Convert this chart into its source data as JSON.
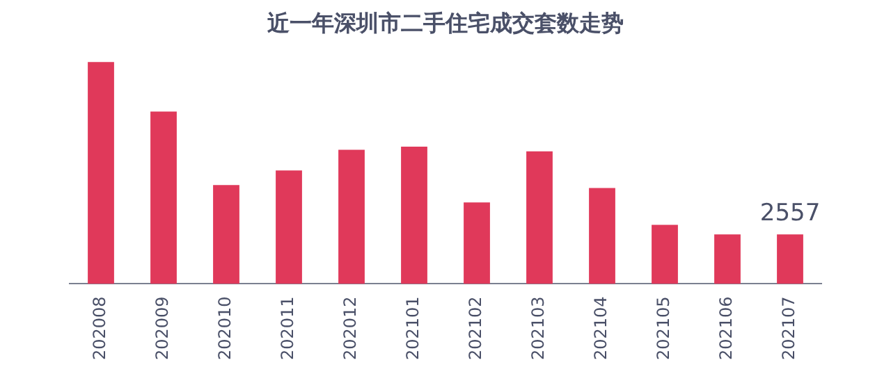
{
  "chart_data": {
    "type": "bar",
    "title": "近一年深圳市二手住宅成交套数走势",
    "tick_labels": "x",
    "categories": [
      "202008",
      "202009",
      "202010",
      "202011",
      "202012",
      "202101",
      "202102",
      "202103",
      "202104",
      "202105",
      "202106",
      "202107"
    ],
    "values": [
      11470,
      8910,
      5110,
      5860,
      6930,
      7090,
      4210,
      6850,
      4950,
      3050,
      2560,
      2557
    ],
    "value_labels": [
      null,
      null,
      null,
      null,
      null,
      null,
      null,
      null,
      null,
      null,
      null,
      "2557"
    ],
    "color": "#e0395a",
    "grid": false,
    "legend": false
  }
}
